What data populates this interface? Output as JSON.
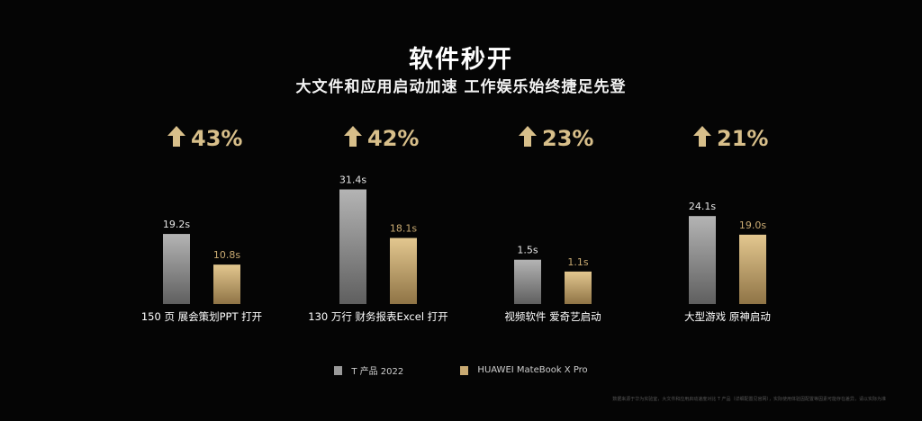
{
  "title": "软件秒开",
  "subtitle": "大文件和应用启动加速 工作娱乐始终捷足先登",
  "chart_data": {
    "type": "bar",
    "categories": [
      "150 页 展会策划PPT 打开",
      "130 万行 财务报表Excel 打开",
      "视频软件 爱奇艺启动",
      "大型游戏 原神启动"
    ],
    "improvements": [
      "43%",
      "42%",
      "23%",
      "21%"
    ],
    "series": [
      {
        "name": "T 产品 2022",
        "values": [
          19.2,
          31.4,
          1.5,
          24.1
        ],
        "labels": [
          "19.2s",
          "31.4s",
          "1.5s",
          "24.1s"
        ],
        "color": "#9a9a9a"
      },
      {
        "name": "HUAWEI MateBook X Pro",
        "values": [
          10.8,
          18.1,
          1.1,
          19.0
        ],
        "labels": [
          "10.8s",
          "18.1s",
          "1.1s",
          "19.0s"
        ],
        "color": "#c9aa72"
      }
    ],
    "accent_color": "#d8bf8a",
    "scales": [
      [
        0,
        34
      ],
      [
        0,
        34
      ],
      [
        0,
        4.2
      ],
      [
        0,
        34
      ]
    ],
    "legend_position": "bottom-center"
  },
  "footnote": "数据来源于华为实验室，大文件和应用启动速度对比 T 产品（详细配置见官网），实际使用体验因配置等因素可能存在差异，请以实际为准"
}
